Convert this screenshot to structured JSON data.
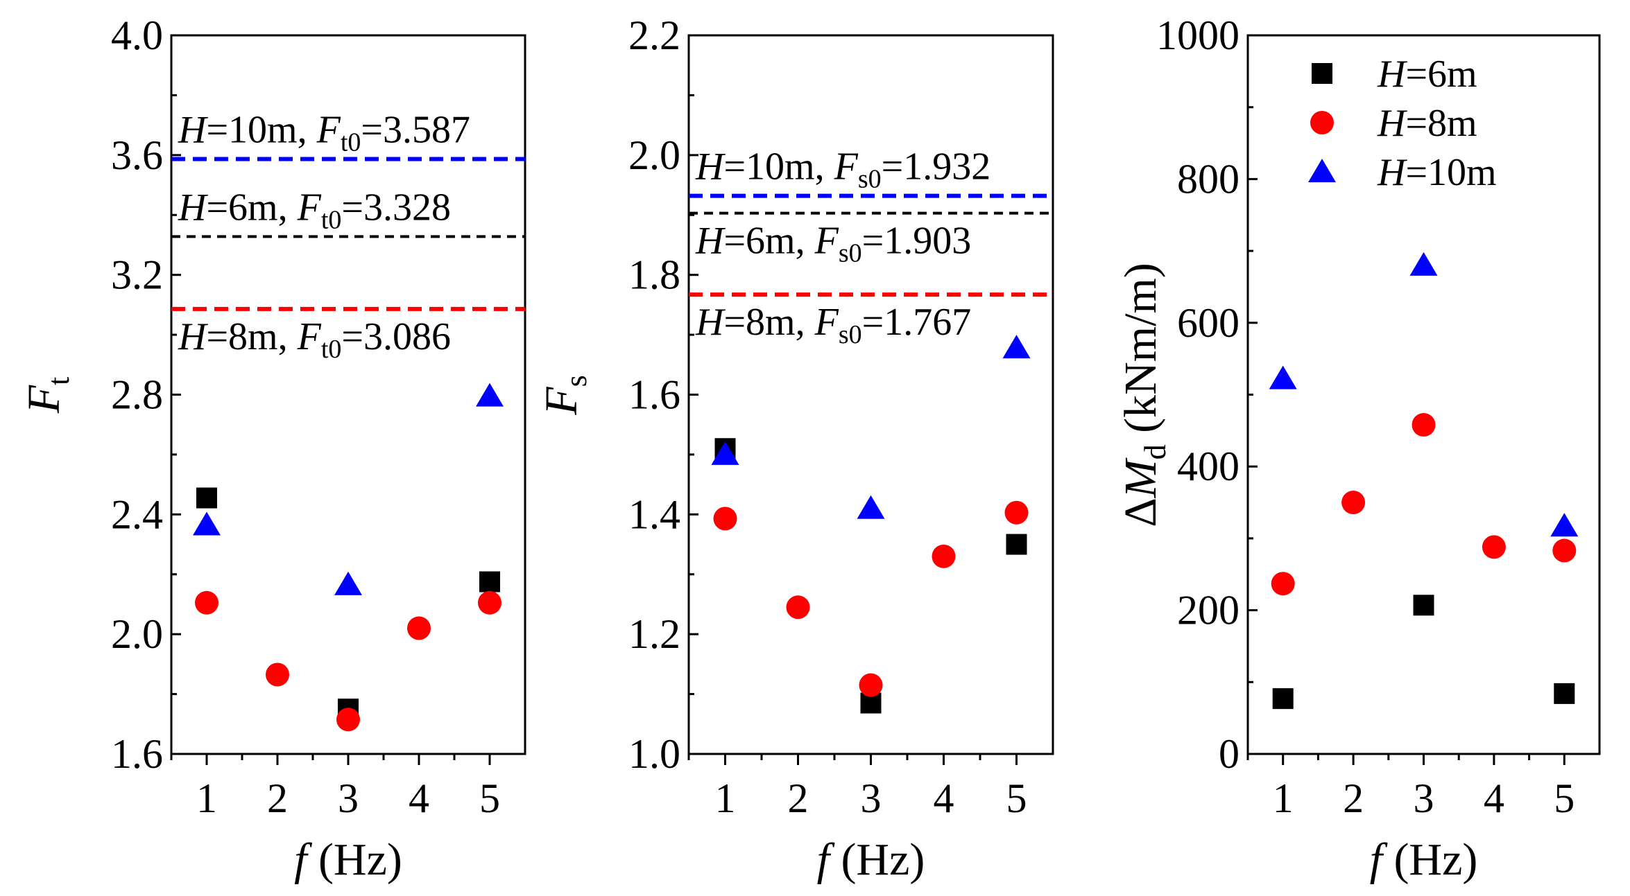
{
  "figure": {
    "colors": {
      "H6": "#000000",
      "H8": "#ff0000",
      "H10": "#0000ff"
    },
    "legend": [
      {
        "key": "H6",
        "var": "H",
        "text": "=6m",
        "marker": "square"
      },
      {
        "key": "H8",
        "var": "H",
        "text": "=8m",
        "marker": "circle"
      },
      {
        "key": "H10",
        "var": "H",
        "text": "=10m",
        "marker": "triangle"
      }
    ]
  },
  "chart_data": [
    {
      "type": "scatter",
      "x_label": {
        "var": "f",
        "unit": " (Hz)"
      },
      "y_label": {
        "var": "F",
        "sub": "t",
        "unit": "",
        "prefix": ""
      },
      "x_ticks": [
        1,
        2,
        3,
        4,
        5
      ],
      "xlim": [
        0.5,
        5.5
      ],
      "ylim": [
        1.6,
        4.0
      ],
      "y_ticks": [
        "1.6",
        "2.0",
        "2.4",
        "2.8",
        "3.2",
        "3.6",
        "4.0"
      ],
      "series": [
        {
          "name": "H=6m",
          "key": "H6",
          "marker": "square",
          "points": [
            [
              1,
              2.455
            ],
            [
              3,
              1.75
            ],
            [
              5,
              2.175
            ]
          ]
        },
        {
          "name": "H=8m",
          "key": "H8",
          "marker": "circle",
          "points": [
            [
              1,
              2.105
            ],
            [
              2,
              1.865
            ],
            [
              3,
              1.715
            ],
            [
              4,
              2.02
            ],
            [
              5,
              2.105
            ]
          ]
        },
        {
          "name": "H=10m",
          "key": "H10",
          "marker": "triangle",
          "points": [
            [
              1,
              2.365
            ],
            [
              3,
              2.165
            ],
            [
              5,
              2.795
            ]
          ]
        }
      ],
      "ref_lines": [
        {
          "key": "H10",
          "value": 3.587,
          "pre": "H",
          "mid": "=10m, ",
          "sym": "F",
          "sub": "t0",
          "post": "=3.587",
          "label_pos": "above"
        },
        {
          "key": "H6",
          "value": 3.328,
          "pre": "H",
          "mid": "=6m, ",
          "sym": "F",
          "sub": "t0",
          "post": "=3.328",
          "label_pos": "above"
        },
        {
          "key": "H8",
          "value": 3.086,
          "pre": "H",
          "mid": "=8m, ",
          "sym": "F",
          "sub": "t0",
          "post": "=3.086",
          "label_pos": "below"
        }
      ]
    },
    {
      "type": "scatter",
      "x_label": {
        "var": "f",
        "unit": " (Hz)"
      },
      "y_label": {
        "var": "F",
        "sub": "s",
        "unit": "",
        "prefix": ""
      },
      "x_ticks": [
        1,
        2,
        3,
        4,
        5
      ],
      "xlim": [
        0.5,
        5.5
      ],
      "ylim": [
        1.0,
        2.2
      ],
      "y_ticks": [
        "1.0",
        "1.2",
        "1.4",
        "1.6",
        "1.8",
        "2.0",
        "2.2"
      ],
      "series": [
        {
          "name": "H=6m",
          "key": "H6",
          "marker": "square",
          "points": [
            [
              1,
              1.51
            ],
            [
              3,
              1.085
            ],
            [
              5,
              1.35
            ]
          ]
        },
        {
          "name": "H=8m",
          "key": "H8",
          "marker": "circle",
          "points": [
            [
              1,
              1.393
            ],
            [
              2,
              1.245
            ],
            [
              3,
              1.115
            ],
            [
              4,
              1.33
            ],
            [
              5,
              1.403
            ]
          ]
        },
        {
          "name": "H=10m",
          "key": "H10",
          "marker": "triangle",
          "points": [
            [
              1,
              1.5
            ],
            [
              3,
              1.41
            ],
            [
              5,
              1.678
            ]
          ]
        }
      ],
      "ref_lines": [
        {
          "key": "H10",
          "value": 1.932,
          "pre": "H",
          "mid": "=10m, ",
          "sym": "F",
          "sub": "s0",
          "post": "=1.932",
          "label_pos": "above"
        },
        {
          "key": "H6",
          "value": 1.903,
          "pre": "H",
          "mid": "=6m, ",
          "sym": "F",
          "sub": "s0",
          "post": "=1.903",
          "label_pos": "below"
        },
        {
          "key": "H8",
          "value": 1.767,
          "pre": "H",
          "mid": "=8m, ",
          "sym": "F",
          "sub": "s0",
          "post": "=1.767",
          "label_pos": "below"
        }
      ]
    },
    {
      "type": "scatter",
      "x_label": {
        "var": "f",
        "unit": " (Hz)"
      },
      "y_label": {
        "var": "M",
        "sub": "d",
        "unit": " (kNm/m)",
        "prefix": "Δ"
      },
      "x_ticks": [
        1,
        2,
        3,
        4,
        5
      ],
      "xlim": [
        0.5,
        5.5
      ],
      "ylim": [
        0,
        1000
      ],
      "y_ticks": [
        "0",
        "200",
        "400",
        "600",
        "800",
        "1000"
      ],
      "series": [
        {
          "name": "H=6m",
          "key": "H6",
          "marker": "square",
          "points": [
            [
              1,
              77
            ],
            [
              3,
              207
            ],
            [
              5,
              84
            ]
          ]
        },
        {
          "name": "H=8m",
          "key": "H8",
          "marker": "circle",
          "points": [
            [
              1,
              237
            ],
            [
              2,
              350
            ],
            [
              3,
              458
            ],
            [
              4,
              288
            ],
            [
              5,
              283
            ]
          ]
        },
        {
          "name": "H=10m",
          "key": "H10",
          "marker": "triangle",
          "points": [
            [
              1,
              522
            ],
            [
              3,
              680
            ],
            [
              5,
              317
            ]
          ]
        }
      ],
      "legend": "top-left",
      "ref_lines": []
    }
  ]
}
